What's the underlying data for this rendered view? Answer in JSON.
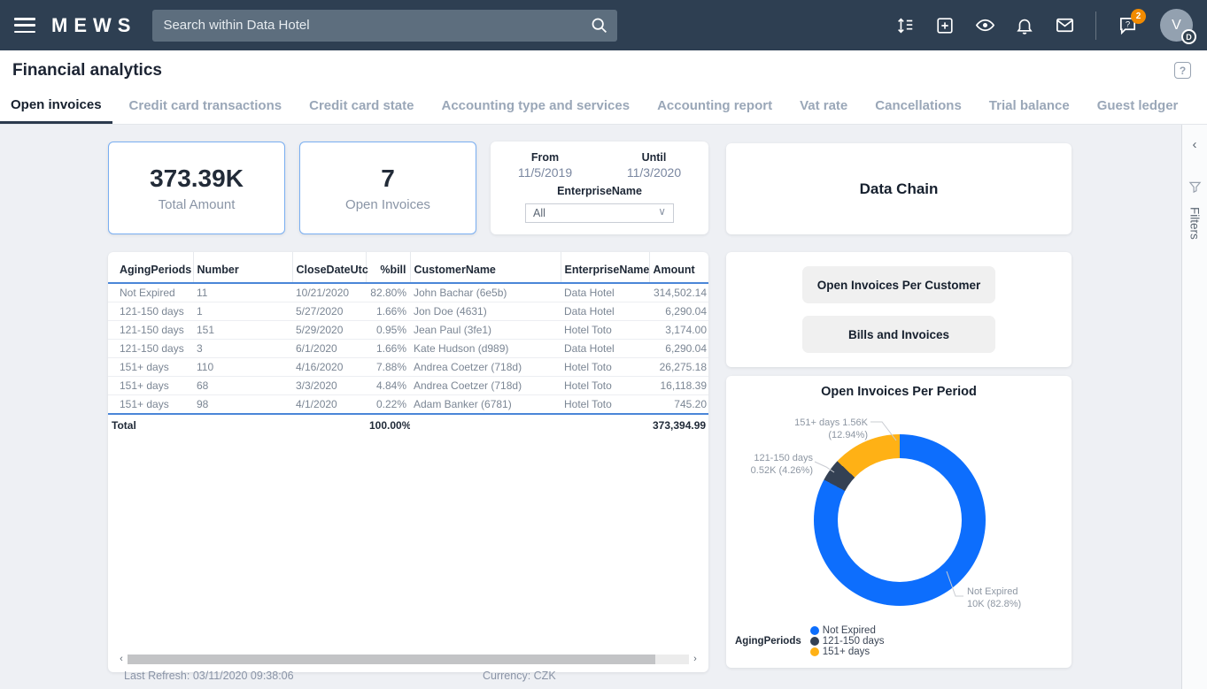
{
  "topbar": {
    "brand": "MEWS",
    "search_placeholder": "Search within Data Hotel",
    "notifications_badge": "2",
    "avatar_initial": "V",
    "avatar_sub_badge": "D"
  },
  "header": {
    "title": "Financial analytics",
    "help_label": "?"
  },
  "tabs": [
    {
      "label": "Open invoices",
      "active": true
    },
    {
      "label": "Credit card transactions",
      "active": false
    },
    {
      "label": "Credit card state",
      "active": false
    },
    {
      "label": "Accounting type and services",
      "active": false
    },
    {
      "label": "Accounting report",
      "active": false
    },
    {
      "label": "Vat rate",
      "active": false
    },
    {
      "label": "Cancellations",
      "active": false
    },
    {
      "label": "Trial balance",
      "active": false
    },
    {
      "label": "Guest ledger",
      "active": false
    }
  ],
  "kpis": [
    {
      "value": "373.39K",
      "label": "Total Amount"
    },
    {
      "value": "7",
      "label": "Open Invoices"
    }
  ],
  "filters": {
    "from_label": "From",
    "from_value": "11/5/2019",
    "until_label": "Until",
    "until_value": "11/3/2020",
    "enterprise_label": "EnterpriseName",
    "enterprise_value": "All",
    "chevron": "∨"
  },
  "data_chain": {
    "title": "Data Chain"
  },
  "actions": [
    {
      "label": "Open Invoices Per Customer"
    },
    {
      "label": "Bills and Invoices"
    }
  ],
  "table": {
    "columns": [
      {
        "key": "aging",
        "label": "AgingPeriods"
      },
      {
        "key": "number",
        "label": "Number"
      },
      {
        "key": "closedate",
        "label": "CloseDateUtc"
      },
      {
        "key": "pctbill",
        "label": "%bill"
      },
      {
        "key": "customer",
        "label": "CustomerName"
      },
      {
        "key": "enterprise",
        "label": "EnterpriseName"
      },
      {
        "key": "amount",
        "label": "Amount"
      }
    ],
    "rows": [
      [
        "Not Expired",
        "11",
        "10/21/2020",
        "82.80%",
        "John Bachar (6e5b)",
        "Data Hotel",
        "314,502.14"
      ],
      [
        "121-150 days",
        "1",
        "5/27/2020",
        "1.66%",
        "Jon Doe (4631)",
        "Data Hotel",
        "6,290.04"
      ],
      [
        "121-150 days",
        "151",
        "5/29/2020",
        "0.95%",
        "Jean Paul (3fe1)",
        "Hotel Toto",
        "3,174.00"
      ],
      [
        "121-150 days",
        "3",
        "6/1/2020",
        "1.66%",
        "Kate Hudson (d989)",
        "Data Hotel",
        "6,290.04"
      ],
      [
        "151+ days",
        "110",
        "4/16/2020",
        "7.88%",
        "Andrea Coetzer (718d)",
        "Hotel Toto",
        "26,275.18"
      ],
      [
        "151+ days",
        "68",
        "3/3/2020",
        "4.84%",
        "Andrea Coetzer (718d)",
        "Hotel Toto",
        "16,118.39"
      ],
      [
        "151+ days",
        "98",
        "4/1/2020",
        "0.22%",
        "Adam Banker (6781)",
        "Hotel Toto",
        "745.20"
      ]
    ],
    "total": {
      "label": "Total",
      "pct": "100.00%",
      "amount": "373,394.99"
    }
  },
  "chart_data": {
    "type": "pie",
    "title": "Open Invoices Per Period",
    "legend_title": "AgingPeriods",
    "legend_position": "bottom",
    "donut": true,
    "segments": [
      {
        "label": "Not Expired",
        "value_label": "10K",
        "pct": 82.8,
        "color": "#0d6efd"
      },
      {
        "label": "121-150 days",
        "value_label": "0.52K",
        "pct": 4.26,
        "color": "#344154"
      },
      {
        "label": "151+ days",
        "value_label": "1.56K",
        "pct": 12.94,
        "color": "#ffb115"
      }
    ],
    "callouts": {
      "orange": {
        "lines": [
          "151+ days 1.56K (12.94%)"
        ]
      },
      "navy": {
        "lines": [
          "121-150 days",
          "0.52K (4.26%)"
        ]
      },
      "blue": {
        "lines": [
          "Not Expired",
          "10K (82.8%)"
        ]
      }
    }
  },
  "scrollbar": {
    "left_arrow": "‹",
    "right_arrow": "›"
  },
  "footer": {
    "last_refresh": "Last Refresh: 03/11/2020 09:38:06",
    "currency": "Currency: CZK"
  },
  "right_rail": {
    "collapse": "‹",
    "filters_label": "Filters"
  }
}
